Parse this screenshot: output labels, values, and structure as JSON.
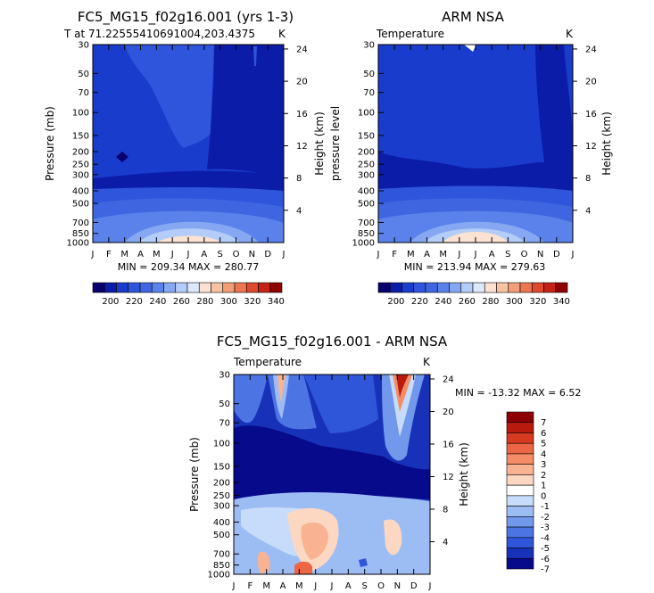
{
  "chart_data": [
    {
      "type": "contour",
      "title": "FC5_MG15_f02g16.001 (yrs 1-3)",
      "subtitle": "T at 71.22555410691004,203.4375",
      "unit_label": "K",
      "ylabel": "Pressure (mb)",
      "y2label": "Height (km)",
      "months": [
        "J",
        "F",
        "M",
        "A",
        "M",
        "J",
        "J",
        "A",
        "S",
        "O",
        "N",
        "D",
        "J"
      ],
      "pressure_ticks": [
        "30",
        "50",
        "70",
        "100",
        "150",
        "200",
        "250",
        "300",
        "400",
        "500",
        "700",
        "850",
        "1000"
      ],
      "height_ticks": [
        "24",
        "20",
        "16",
        "12",
        "8",
        "4"
      ],
      "stats": "MIN = 209.34  MAX = 280.77",
      "colorbar_labels": [
        "200",
        "220",
        "240",
        "260",
        "280",
        "300",
        "320",
        "340"
      ]
    },
    {
      "type": "contour",
      "title": "ARM NSA",
      "subtitle": "Temperature",
      "unit_label": "K",
      "ylabel": "pressure level",
      "y2label": "Height (km)",
      "months": [
        "J",
        "F",
        "M",
        "A",
        "M",
        "J",
        "J",
        "A",
        "S",
        "O",
        "N",
        "D",
        "J"
      ],
      "pressure_ticks": [
        "30",
        "50",
        "70",
        "100",
        "150",
        "200",
        "250",
        "300",
        "400",
        "500",
        "700",
        "850",
        "1000"
      ],
      "height_ticks": [
        "24",
        "20",
        "16",
        "12",
        "8",
        "4"
      ],
      "stats": "MIN = 213.94  MAX = 279.63",
      "colorbar_labels": [
        "200",
        "220",
        "240",
        "260",
        "280",
        "300",
        "320",
        "340"
      ]
    },
    {
      "type": "contour",
      "title": "FC5_MG15_f02g16.001 - ARM NSA",
      "subtitle": "Temperature",
      "unit_label": "K",
      "ylabel": "Pressure (mb)",
      "y2label": "Height (km)",
      "months": [
        "J",
        "F",
        "M",
        "A",
        "M",
        "J",
        "J",
        "A",
        "S",
        "O",
        "N",
        "D",
        "J"
      ],
      "pressure_ticks": [
        "30",
        "50",
        "70",
        "100",
        "150",
        "200",
        "250",
        "300",
        "400",
        "500",
        "700",
        "850",
        "1000"
      ],
      "height_ticks": [
        "24",
        "20",
        "16",
        "12",
        "8",
        "4"
      ],
      "stats": "MIN = -13.32  MAX =    6.52",
      "colorbar_labels": [
        "7",
        "6",
        "5",
        "4",
        "3",
        "2",
        "1",
        "0",
        "-1",
        "-2",
        "-3",
        "-4",
        "-5",
        "-6",
        "-7"
      ]
    }
  ],
  "colors": {
    "temp_scale": [
      "#08006e",
      "#0b1ca8",
      "#1a3ccc",
      "#2e55dc",
      "#3f66e0",
      "#5a82ea",
      "#86a8f2",
      "#b4cdf8",
      "#dce9fc",
      "#fbe2d2",
      "#f8c3a3",
      "#f39e79",
      "#ec7552",
      "#de4a2e",
      "#c52216",
      "#8f0000"
    ],
    "diff_scale": [
      "#8f0000",
      "#b81a0e",
      "#d63a20",
      "#ec6544",
      "#f58c68",
      "#f9b392",
      "#fcd8c3",
      "#ffffff",
      "#c7dbfa",
      "#9cbcf4",
      "#7298ec",
      "#4d74e3",
      "#2f55d8",
      "#1732b8",
      "#080a8c"
    ]
  }
}
